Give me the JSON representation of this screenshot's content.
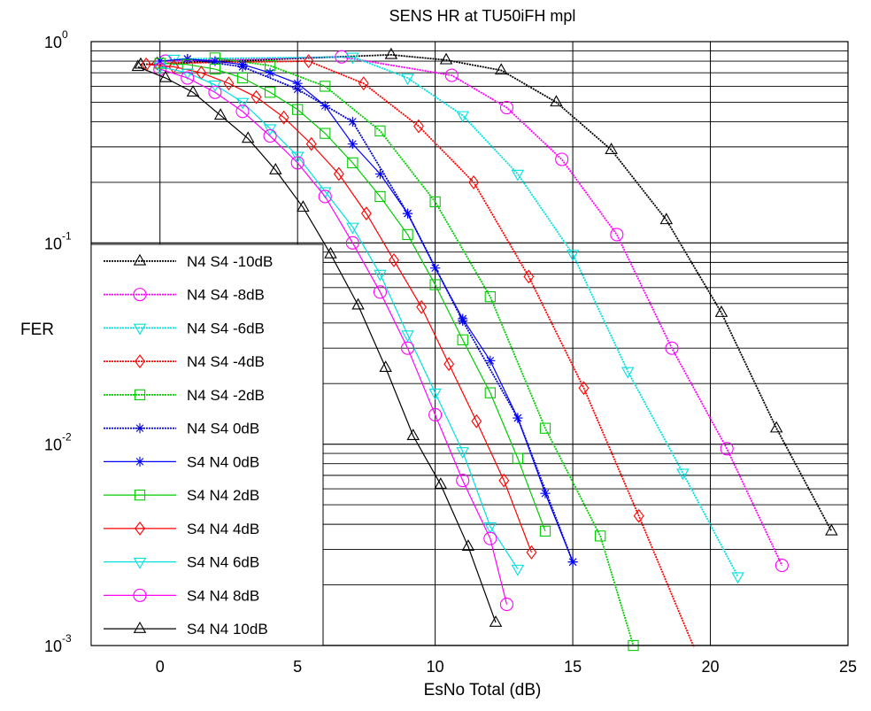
{
  "chart_data": {
    "type": "line",
    "title": "SENS HR at TU50iFH mpl",
    "xlabel": "EsNo Total (dB)",
    "ylabel": "FER",
    "xlim": [
      -2.5,
      25
    ],
    "ylim": [
      0.001,
      1
    ],
    "yscale": "log",
    "grid": true,
    "legend_position": "left",
    "x_ticks": [
      "0",
      "5",
      "10",
      "15",
      "20",
      "25"
    ],
    "x_tick_values": [
      0,
      5,
      10,
      15,
      20,
      25
    ],
    "y_ticks": [
      {
        "base": "10",
        "exp": "0",
        "value": 1
      },
      {
        "base": "10",
        "exp": "-1",
        "value": 0.1
      },
      {
        "base": "10",
        "exp": "-2",
        "value": 0.01
      },
      {
        "base": "10",
        "exp": "-3",
        "value": 0.001
      }
    ],
    "series": [
      {
        "name": "N4 S4 -10dB",
        "color": "#000000",
        "marker": "triangle-up",
        "dashed": true,
        "x": [
          -0.7,
          8.4,
          10.4,
          12.4,
          14.4,
          16.4,
          18.4,
          20.4,
          22.4,
          24.4
        ],
        "y": [
          0.77,
          0.86,
          0.81,
          0.72,
          0.5,
          0.29,
          0.13,
          0.045,
          0.012,
          0.0037
        ]
      },
      {
        "name": "N4 S4 -8dB",
        "color": "#ff00ff",
        "marker": "circle",
        "dashed": true,
        "x": [
          0.2,
          6.6,
          10.6,
          12.6,
          14.6,
          16.6,
          18.6,
          20.6,
          22.6
        ],
        "y": [
          0.8,
          0.84,
          0.68,
          0.47,
          0.26,
          0.11,
          0.03,
          0.0095,
          0.0025
        ]
      },
      {
        "name": "N4 S4 -6dB",
        "color": "#00e0e0",
        "marker": "triangle-down",
        "dashed": true,
        "x": [
          0.5,
          7.0,
          9.0,
          11.0,
          13.0,
          15.0,
          17.0,
          19.0,
          21.0
        ],
        "y": [
          0.82,
          0.84,
          0.66,
          0.43,
          0.22,
          0.088,
          0.023,
          0.0072,
          0.0022
        ]
      },
      {
        "name": "N4 S4 -4dB",
        "color": "#ff0000",
        "marker": "diamond",
        "dashed": true,
        "x": [
          -0.1,
          5.4,
          7.4,
          9.4,
          11.4,
          13.4,
          15.4,
          17.4,
          19.4
        ],
        "y": [
          0.78,
          0.8,
          0.62,
          0.38,
          0.2,
          0.068,
          0.019,
          0.0044,
          0.00098
        ]
      },
      {
        "name": "N4 S4 -2dB",
        "color": "#00cc00",
        "marker": "square",
        "dashed": true,
        "x": [
          2.0,
          4.0,
          6.0,
          8.0,
          10.0,
          12.0,
          14.0,
          16.0,
          17.2
        ],
        "y": [
          0.83,
          0.76,
          0.6,
          0.36,
          0.16,
          0.054,
          0.012,
          0.0035,
          0.001
        ]
      },
      {
        "name": "N4 S4 0dB",
        "color": "#0000cc",
        "marker": "star",
        "dashed": true,
        "x": [
          1.0,
          3.0,
          5.0,
          7.0,
          9.0,
          11.0,
          13.0,
          15.0
        ],
        "y": [
          0.82,
          0.75,
          0.58,
          0.4,
          0.14,
          0.041,
          0.0135,
          0.0026
        ]
      },
      {
        "name": "S4 N4 0dB",
        "color": "#0000ff",
        "marker": "star",
        "dashed": false,
        "x": [
          0.0,
          1.0,
          2.0,
          3.0,
          4.0,
          5.0,
          6.0,
          7.0,
          8.0,
          9.0,
          10.0,
          11.0,
          12.0,
          13.0,
          14.0,
          15.0
        ],
        "y": [
          0.8,
          0.82,
          0.8,
          0.77,
          0.7,
          0.62,
          0.48,
          0.31,
          0.22,
          0.14,
          0.075,
          0.042,
          0.026,
          0.0135,
          0.0057,
          0.0026
        ]
      },
      {
        "name": "S4 N4 2dB",
        "color": "#00cc00",
        "marker": "square",
        "dashed": false,
        "x": [
          0.0,
          1.0,
          2.0,
          3.0,
          4.0,
          5.0,
          6.0,
          7.0,
          8.0,
          9.0,
          10.0,
          11.0,
          12.0,
          13.0,
          14.0
        ],
        "y": [
          0.78,
          0.77,
          0.73,
          0.66,
          0.56,
          0.46,
          0.35,
          0.25,
          0.17,
          0.11,
          0.062,
          0.033,
          0.018,
          0.0085,
          0.0037
        ]
      },
      {
        "name": "S4 N4 4dB",
        "color": "#ff0000",
        "marker": "diamond",
        "dashed": false,
        "x": [
          -0.5,
          0.5,
          1.5,
          2.5,
          3.5,
          4.5,
          5.5,
          6.5,
          7.5,
          8.5,
          9.5,
          10.5,
          11.5,
          12.5,
          13.5
        ],
        "y": [
          0.77,
          0.75,
          0.7,
          0.62,
          0.53,
          0.42,
          0.31,
          0.22,
          0.14,
          0.082,
          0.048,
          0.025,
          0.013,
          0.0066,
          0.0029
        ]
      },
      {
        "name": "S4 N4 6dB",
        "color": "#00e0e0",
        "marker": "triangle-down",
        "dashed": false,
        "x": [
          0.0,
          1.0,
          2.0,
          3.0,
          4.0,
          5.0,
          6.0,
          7.0,
          8.0,
          9.0,
          10.0,
          11.0,
          12.0,
          13.0
        ],
        "y": [
          0.75,
          0.7,
          0.61,
          0.5,
          0.37,
          0.27,
          0.18,
          0.12,
          0.07,
          0.035,
          0.018,
          0.0092,
          0.0039,
          0.0024
        ]
      },
      {
        "name": "S4 N4 8dB",
        "color": "#ff00ff",
        "marker": "circle",
        "dashed": false,
        "x": [
          0.0,
          1.0,
          2.0,
          3.0,
          4.0,
          5.0,
          6.0,
          7.0,
          8.0,
          9.0,
          10.0,
          11.0,
          12.0,
          12.6
        ],
        "y": [
          0.73,
          0.66,
          0.56,
          0.45,
          0.34,
          0.25,
          0.17,
          0.1,
          0.057,
          0.03,
          0.014,
          0.0066,
          0.0034,
          0.0016
        ]
      },
      {
        "name": "S4 N4 10dB",
        "color": "#000000",
        "marker": "triangle-up",
        "dashed": false,
        "x": [
          -0.8,
          0.2,
          1.2,
          2.2,
          3.2,
          4.2,
          5.2,
          6.2,
          7.2,
          8.2,
          9.2,
          10.2,
          11.2,
          12.2
        ],
        "y": [
          0.75,
          0.66,
          0.56,
          0.43,
          0.33,
          0.23,
          0.15,
          0.088,
          0.049,
          0.024,
          0.011,
          0.0063,
          0.0031,
          0.0013
        ]
      }
    ]
  }
}
